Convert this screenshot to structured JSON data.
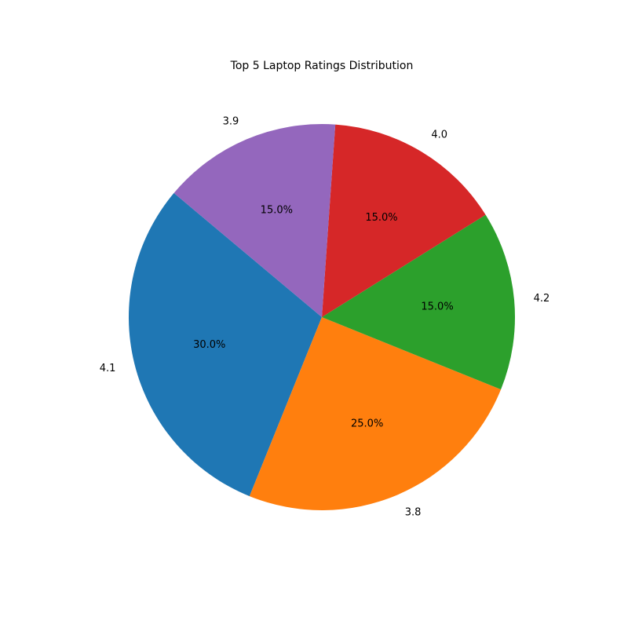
{
  "chart_data": {
    "type": "pie",
    "title": "Top 5 Laptop Ratings Distribution",
    "start_angle_deg": 140,
    "direction": "counterclockwise",
    "slices": [
      {
        "label": "4.1",
        "value": 30.0,
        "pct_label": "30.0%",
        "color": "#1f77b4"
      },
      {
        "label": "3.8",
        "value": 25.0,
        "pct_label": "25.0%",
        "color": "#ff7f0e"
      },
      {
        "label": "4.2",
        "value": 15.0,
        "pct_label": "15.0%",
        "color": "#2ca02c"
      },
      {
        "label": "4.0",
        "value": 15.0,
        "pct_label": "15.0%",
        "color": "#d62728"
      },
      {
        "label": "3.9",
        "value": 15.0,
        "pct_label": "15.0%",
        "color": "#9467bd"
      }
    ]
  }
}
